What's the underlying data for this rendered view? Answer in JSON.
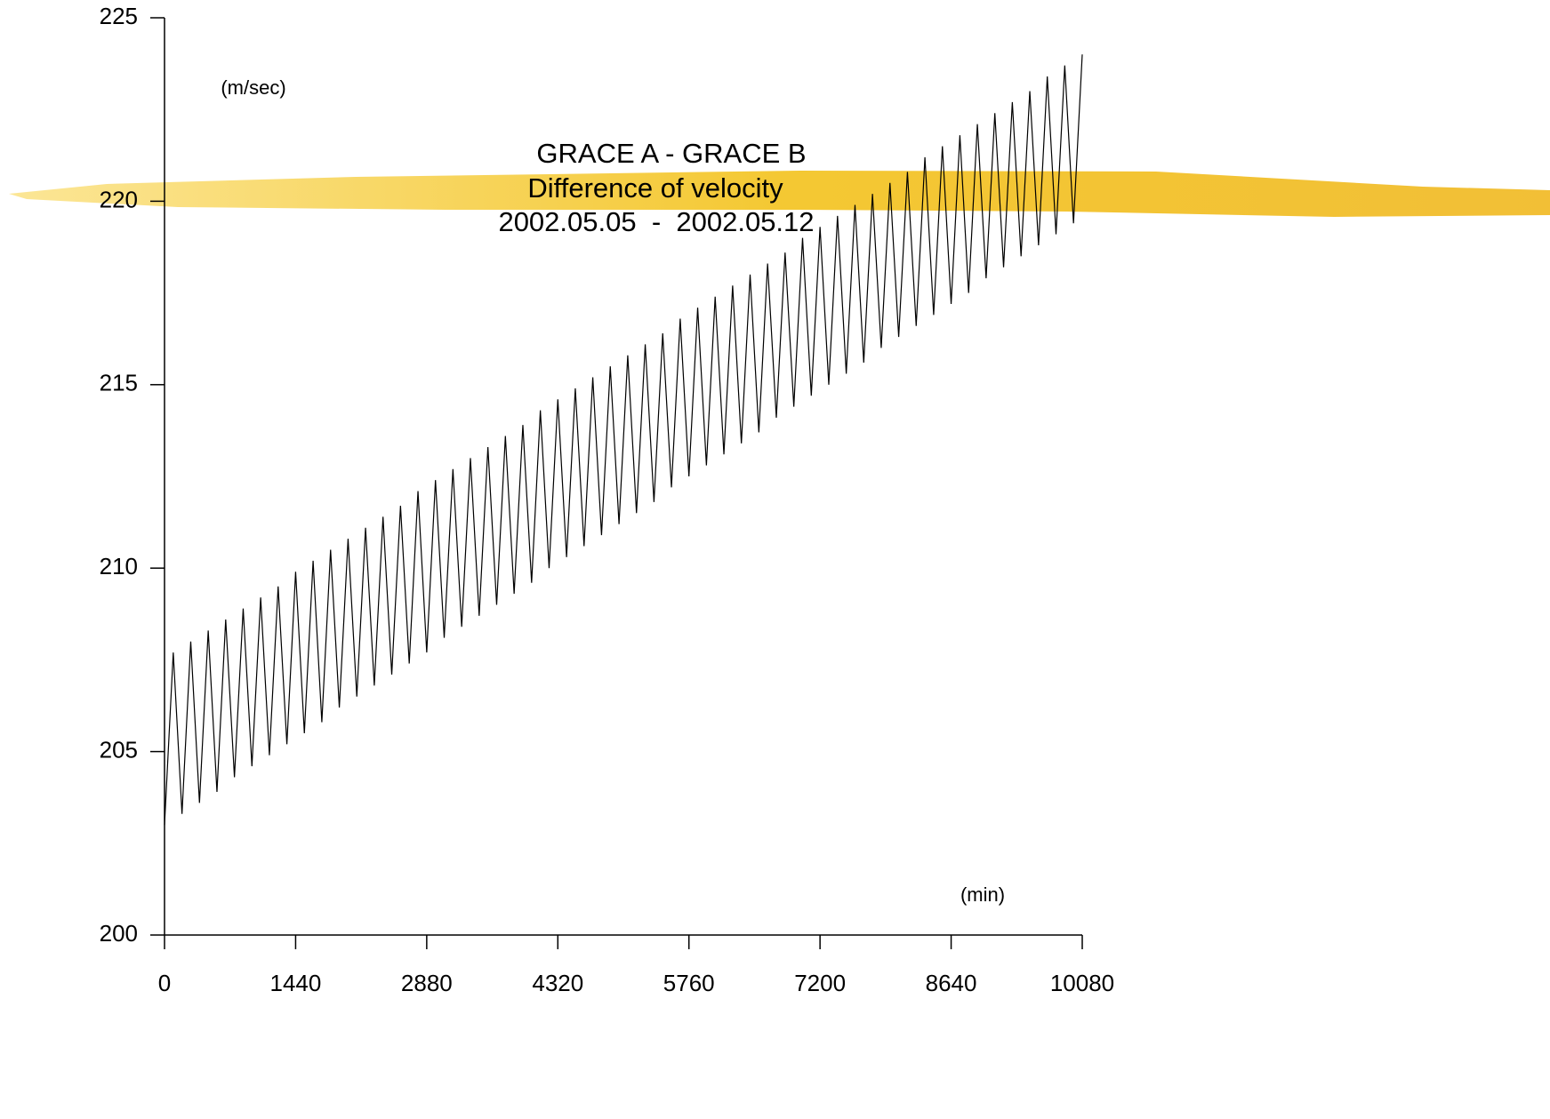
{
  "chart_data": {
    "type": "line",
    "title": [
      "GRACE A - GRACE B",
      "Difference of velocity",
      "2002.05.05  -  2002.05.12"
    ],
    "y_unit": "(m/sec)",
    "x_unit": "(min)",
    "color": "#000000",
    "xlim": [
      0,
      10080
    ],
    "xticks": [
      0,
      1440,
      2880,
      4320,
      5760,
      7200,
      8640,
      10080
    ],
    "ylim": [
      200,
      225
    ],
    "yticks": [
      200,
      205,
      210,
      215,
      220,
      225
    ],
    "x": [
      0,
      96,
      192,
      288,
      384,
      480,
      576,
      672,
      768,
      864,
      960,
      1056,
      1152,
      1248,
      1344,
      1440,
      1536,
      1632,
      1728,
      1824,
      1920,
      2016,
      2112,
      2208,
      2304,
      2400,
      2496,
      2592,
      2688,
      2784,
      2880,
      2976,
      3072,
      3168,
      3264,
      3360,
      3456,
      3552,
      3648,
      3744,
      3840,
      3936,
      4032,
      4128,
      4224,
      4320,
      4416,
      4512,
      4608,
      4704,
      4800,
      4896,
      4992,
      5088,
      5184,
      5280,
      5376,
      5472,
      5568,
      5664,
      5760,
      5856,
      5952,
      6048,
      6144,
      6240,
      6336,
      6432,
      6528,
      6624,
      6720,
      6816,
      6912,
      7008,
      7104,
      7200,
      7296,
      7392,
      7488,
      7584,
      7680,
      7776,
      7872,
      7968,
      8064,
      8160,
      8256,
      8352,
      8448,
      8544,
      8640,
      8736,
      8832,
      8928,
      9024,
      9120,
      9216,
      9312,
      9408,
      9504,
      9600,
      9696,
      9792,
      9888,
      9984,
      10080
    ],
    "values": [
      203.0,
      207.7,
      203.3,
      208.0,
      203.6,
      208.3,
      203.9,
      208.6,
      204.3,
      208.9,
      204.6,
      209.2,
      204.9,
      209.5,
      205.2,
      209.9,
      205.5,
      210.2,
      205.8,
      210.5,
      206.2,
      210.8,
      206.5,
      211.1,
      206.8,
      211.4,
      207.1,
      211.7,
      207.4,
      212.1,
      207.7,
      212.4,
      208.1,
      212.7,
      208.4,
      213.0,
      208.7,
      213.3,
      209.0,
      213.6,
      209.3,
      213.9,
      209.6,
      214.3,
      210.0,
      214.6,
      210.3,
      214.9,
      210.6,
      215.2,
      210.9,
      215.5,
      211.2,
      215.8,
      211.5,
      216.1,
      211.8,
      216.4,
      212.2,
      216.8,
      212.5,
      217.1,
      212.8,
      217.4,
      213.1,
      217.7,
      213.4,
      218.0,
      213.7,
      218.3,
      214.1,
      218.6,
      214.4,
      219.0,
      214.7,
      219.3,
      215.0,
      219.6,
      215.3,
      219.9,
      215.6,
      220.2,
      216.0,
      220.5,
      216.3,
      220.8,
      216.6,
      221.2,
      216.9,
      221.5,
      217.2,
      221.8,
      217.5,
      222.1,
      217.9,
      222.4,
      218.2,
      222.7,
      218.5,
      223.0,
      218.8,
      223.4,
      219.1,
      223.7,
      219.4,
      224.0
    ]
  }
}
